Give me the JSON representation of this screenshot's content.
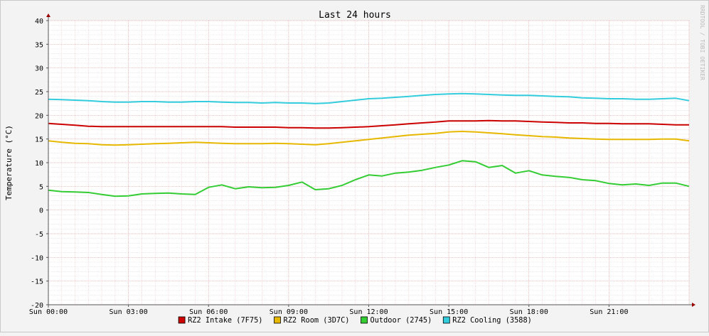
{
  "watermark": "RRDTOOL / TOBI OETIKER",
  "chart_data": {
    "type": "line",
    "title": "Last 24 hours",
    "ylabel": "Temperature (°C)",
    "xlabel": "",
    "ylim": [
      -20,
      40
    ],
    "yticks": [
      -20,
      -15,
      -10,
      -5,
      0,
      5,
      10,
      15,
      20,
      25,
      30,
      35,
      40
    ],
    "xlim_hours": [
      0,
      24
    ],
    "xticks": [
      "Sun 00:00",
      "Sun 03:00",
      "Sun 06:00",
      "Sun 09:00",
      "Sun 12:00",
      "Sun 15:00",
      "Sun 18:00",
      "Sun 21:00"
    ],
    "grid": true,
    "legend_position": "bottom",
    "x_hours": [
      0,
      0.5,
      1,
      1.5,
      2,
      2.5,
      3,
      3.5,
      4,
      4.5,
      5,
      5.5,
      6,
      6.5,
      7,
      7.5,
      8,
      8.5,
      9,
      9.5,
      10,
      10.5,
      11,
      11.5,
      12,
      12.5,
      13,
      13.5,
      14,
      14.5,
      15,
      15.5,
      16,
      16.5,
      17,
      17.5,
      18,
      18.5,
      19,
      19.5,
      20,
      20.5,
      21,
      21.5,
      22,
      22.5,
      23,
      23.5,
      24
    ],
    "series": [
      {
        "name": "RZ2 Intake (7F75)",
        "color": "#cc0000",
        "values": [
          18.3,
          18.1,
          17.9,
          17.7,
          17.6,
          17.6,
          17.6,
          17.6,
          17.6,
          17.6,
          17.6,
          17.6,
          17.6,
          17.6,
          17.5,
          17.5,
          17.5,
          17.5,
          17.4,
          17.4,
          17.3,
          17.3,
          17.4,
          17.5,
          17.6,
          17.8,
          18.0,
          18.2,
          18.4,
          18.6,
          18.8,
          18.8,
          18.8,
          18.9,
          18.8,
          18.8,
          18.7,
          18.6,
          18.5,
          18.4,
          18.4,
          18.3,
          18.3,
          18.2,
          18.2,
          18.2,
          18.1,
          18.0,
          18.0
        ]
      },
      {
        "name": "RZ2 Room (3D7C)",
        "color": "#e6b800",
        "values": [
          14.6,
          14.3,
          14.1,
          14.0,
          13.8,
          13.7,
          13.8,
          13.9,
          14.0,
          14.1,
          14.2,
          14.3,
          14.2,
          14.1,
          14.0,
          14.0,
          14.0,
          14.1,
          14.0,
          13.9,
          13.8,
          14.0,
          14.3,
          14.6,
          14.9,
          15.2,
          15.5,
          15.8,
          16.0,
          16.2,
          16.5,
          16.6,
          16.5,
          16.3,
          16.1,
          15.9,
          15.7,
          15.5,
          15.4,
          15.2,
          15.1,
          15.0,
          14.9,
          14.9,
          14.9,
          14.9,
          15.0,
          15.0,
          14.6
        ]
      },
      {
        "name": "Outdoor (2745)",
        "color": "#33cc33",
        "values": [
          4.2,
          3.9,
          3.8,
          3.7,
          3.3,
          2.9,
          3.0,
          3.4,
          3.5,
          3.6,
          3.4,
          3.3,
          4.8,
          5.3,
          4.5,
          4.9,
          4.7,
          4.8,
          5.2,
          5.9,
          4.3,
          4.5,
          5.2,
          6.4,
          7.4,
          7.2,
          7.8,
          8.0,
          8.4,
          9.0,
          9.5,
          10.4,
          10.2,
          9.0,
          9.4,
          7.8,
          8.3,
          7.4,
          7.1,
          6.9,
          6.4,
          6.2,
          5.6,
          5.3,
          5.5,
          5.2,
          5.7,
          5.7,
          5.0
        ]
      },
      {
        "name": "RZ2 Cooling (3588)",
        "color": "#33ccdd",
        "values": [
          23.4,
          23.3,
          23.2,
          23.1,
          22.9,
          22.8,
          22.8,
          22.9,
          22.9,
          22.8,
          22.8,
          22.9,
          22.9,
          22.8,
          22.7,
          22.7,
          22.6,
          22.7,
          22.6,
          22.6,
          22.5,
          22.6,
          22.9,
          23.2,
          23.5,
          23.6,
          23.8,
          24.0,
          24.2,
          24.4,
          24.5,
          24.6,
          24.5,
          24.4,
          24.3,
          24.2,
          24.2,
          24.1,
          24.0,
          23.9,
          23.7,
          23.6,
          23.5,
          23.5,
          23.4,
          23.4,
          23.5,
          23.6,
          23.1
        ]
      }
    ]
  }
}
